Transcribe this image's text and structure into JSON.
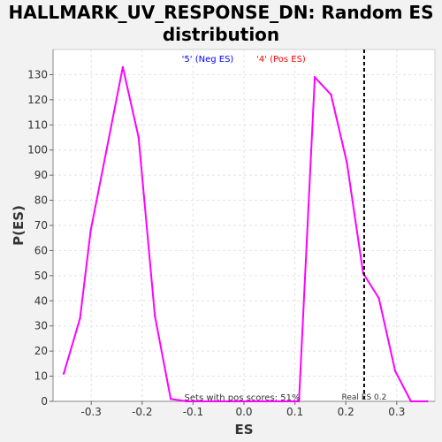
{
  "chart_data": {
    "type": "line",
    "title_lines": [
      "HALLMARK_UV_RESPONSE_DN: Random ES",
      "distribution"
    ],
    "xlabel": "ES",
    "ylabel": "P(ES)",
    "xlim": [
      -0.375,
      0.375
    ],
    "ylim": [
      0,
      140
    ],
    "x_ticks": [
      -0.3,
      -0.2,
      -0.1,
      0.0,
      0.1,
      0.2,
      0.3
    ],
    "x_tick_labels": [
      "-0.3",
      "-0.2",
      "-0.1",
      "0.0",
      "0.1",
      "0.2",
      "0.3"
    ],
    "y_ticks": [
      0,
      10,
      20,
      30,
      40,
      50,
      60,
      70,
      80,
      90,
      100,
      110,
      120,
      130
    ],
    "y_tick_labels": [
      "0",
      "10",
      "20",
      "30",
      "40",
      "50",
      "60",
      "70",
      "80",
      "90",
      "100",
      "110",
      "120",
      "130"
    ],
    "grid": true,
    "legend": {
      "position": "top-center",
      "entries": [
        {
          "label": "'5' (Neg ES)",
          "color": "#0000ff"
        },
        {
          "label": "'4' (Pos ES)",
          "color": "#ff0000"
        }
      ]
    },
    "series": [
      {
        "color": "#ff00ff",
        "x": [
          -0.354,
          -0.322,
          -0.301,
          -0.27,
          -0.238,
          -0.207,
          -0.175,
          -0.144,
          -0.112,
          -0.081,
          -0.049,
          -0.018,
          0.013,
          0.045,
          0.076,
          0.108,
          0.139,
          0.171,
          0.202,
          0.234,
          0.265,
          0.297,
          0.328,
          0.36
        ],
        "y": [
          11,
          33,
          68,
          100,
          133,
          105,
          34,
          1,
          0,
          0,
          0,
          0,
          0,
          0,
          0,
          0,
          129,
          122,
          95,
          51,
          41,
          12,
          0,
          0
        ]
      }
    ],
    "real_es": {
      "x": 0.236,
      "label": "Real ES 0.2",
      "color": "#000000"
    },
    "annotation": "Sets with pos scores: 51%"
  }
}
